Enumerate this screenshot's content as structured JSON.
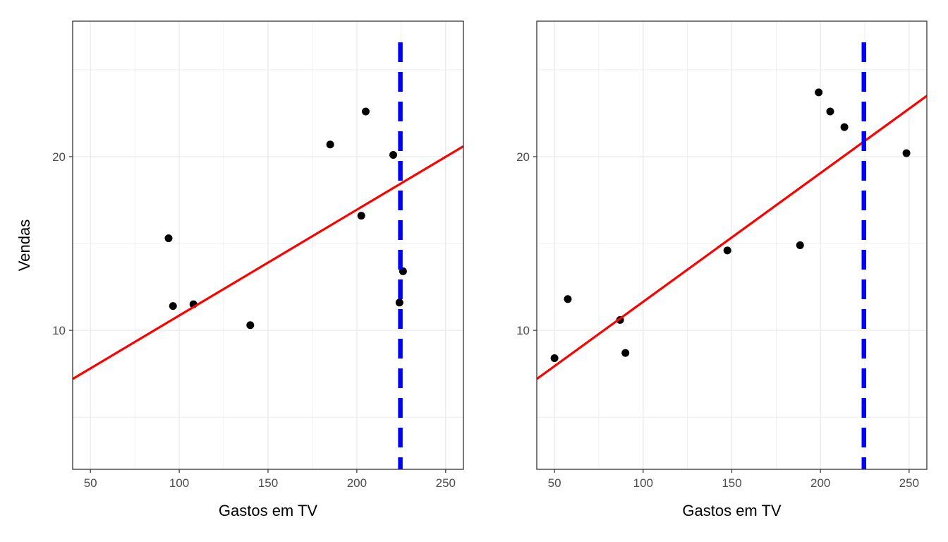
{
  "colors": {
    "point": "#000000",
    "fit_line": "#ff0000",
    "reference_line": "#0000ff",
    "grid": "#ebebeb",
    "panel_border": "#333333"
  },
  "chart_data": [
    {
      "type": "scatter",
      "xlabel": "Gastos em TV",
      "ylabel": "Vendas",
      "xlim": [
        40,
        260
      ],
      "ylim": [
        2,
        27.8
      ],
      "x_ticks": [
        50,
        100,
        150,
        200,
        250
      ],
      "y_ticks": [
        10,
        20
      ],
      "grid": true,
      "legend": "none",
      "points": [
        {
          "x": 94,
          "y": 15.3
        },
        {
          "x": 96.5,
          "y": 11.4
        },
        {
          "x": 108,
          "y": 11.5
        },
        {
          "x": 140,
          "y": 10.3
        },
        {
          "x": 185,
          "y": 20.7
        },
        {
          "x": 202.5,
          "y": 16.6
        },
        {
          "x": 205,
          "y": 22.6
        },
        {
          "x": 220.5,
          "y": 20.1
        },
        {
          "x": 224,
          "y": 11.6
        },
        {
          "x": 226,
          "y": 13.4
        }
      ],
      "fit_line": {
        "x": [
          40,
          260
        ],
        "y": [
          7.2,
          20.6
        ]
      },
      "reference_line": {
        "x": 224.5,
        "style": "dashed"
      }
    },
    {
      "type": "scatter",
      "xlabel": "Gastos em TV",
      "ylabel": "",
      "xlim": [
        40,
        260
      ],
      "ylim": [
        2,
        27.8
      ],
      "x_ticks": [
        50,
        100,
        150,
        200,
        250
      ],
      "y_ticks": [
        10,
        20
      ],
      "grid": true,
      "legend": "none",
      "points": [
        {
          "x": 50,
          "y": 8.4
        },
        {
          "x": 57.5,
          "y": 11.8
        },
        {
          "x": 87,
          "y": 10.6
        },
        {
          "x": 90,
          "y": 8.7
        },
        {
          "x": 147.5,
          "y": 14.6
        },
        {
          "x": 188.5,
          "y": 14.9
        },
        {
          "x": 199,
          "y": 23.7
        },
        {
          "x": 205.5,
          "y": 22.6
        },
        {
          "x": 213.5,
          "y": 21.7
        },
        {
          "x": 248.5,
          "y": 20.2
        }
      ],
      "fit_line": {
        "x": [
          40,
          260
        ],
        "y": [
          7.2,
          23.5
        ]
      },
      "reference_line": {
        "x": 224.5,
        "style": "dashed"
      }
    }
  ]
}
